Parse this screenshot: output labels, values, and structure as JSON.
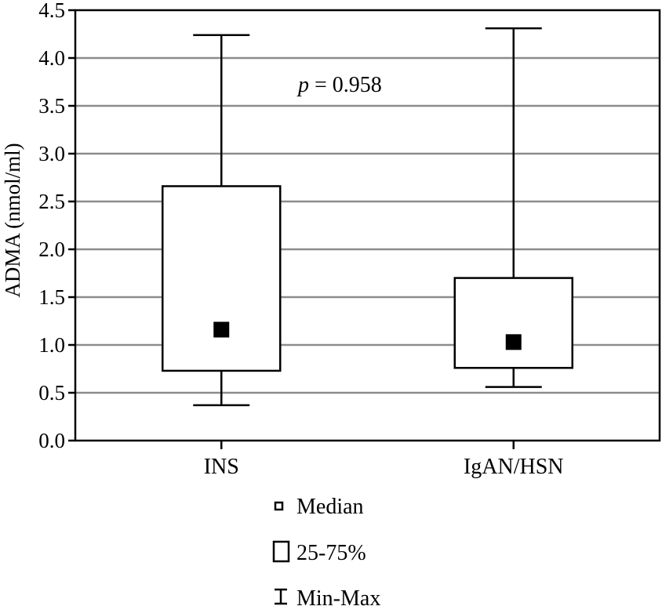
{
  "chart_data": {
    "type": "box",
    "ylabel": "ADMA (nmol/ml)",
    "xlabel": "",
    "ylim": [
      0.0,
      4.5
    ],
    "yticks": [
      0.0,
      0.5,
      1.0,
      1.5,
      2.0,
      2.5,
      3.0,
      3.5,
      4.0,
      4.5
    ],
    "ytick_labels": [
      "0.0",
      "0.5",
      "1.0",
      "1.5",
      "2.0",
      "2.5",
      "3.0",
      "3.5",
      "4.0",
      "4.5"
    ],
    "grid": true,
    "categories": [
      "INS",
      "IgAN/HSN"
    ],
    "boxes": [
      {
        "category": "INS",
        "min": 0.37,
        "q1": 0.73,
        "median": 1.16,
        "q3": 2.66,
        "max": 4.24
      },
      {
        "category": "IgAN/HSN",
        "min": 0.56,
        "q1": 0.76,
        "median": 1.03,
        "q3": 1.7,
        "max": 4.31
      }
    ],
    "annotation": {
      "p_symbol": "p",
      "p_text": " = 0.958"
    },
    "legend": {
      "placement": "bottom",
      "items": [
        {
          "symbol": "median-marker",
          "label": "Median"
        },
        {
          "symbol": "box",
          "label": "25-75%"
        },
        {
          "symbol": "whisker",
          "label": "Min-Max"
        }
      ]
    }
  }
}
